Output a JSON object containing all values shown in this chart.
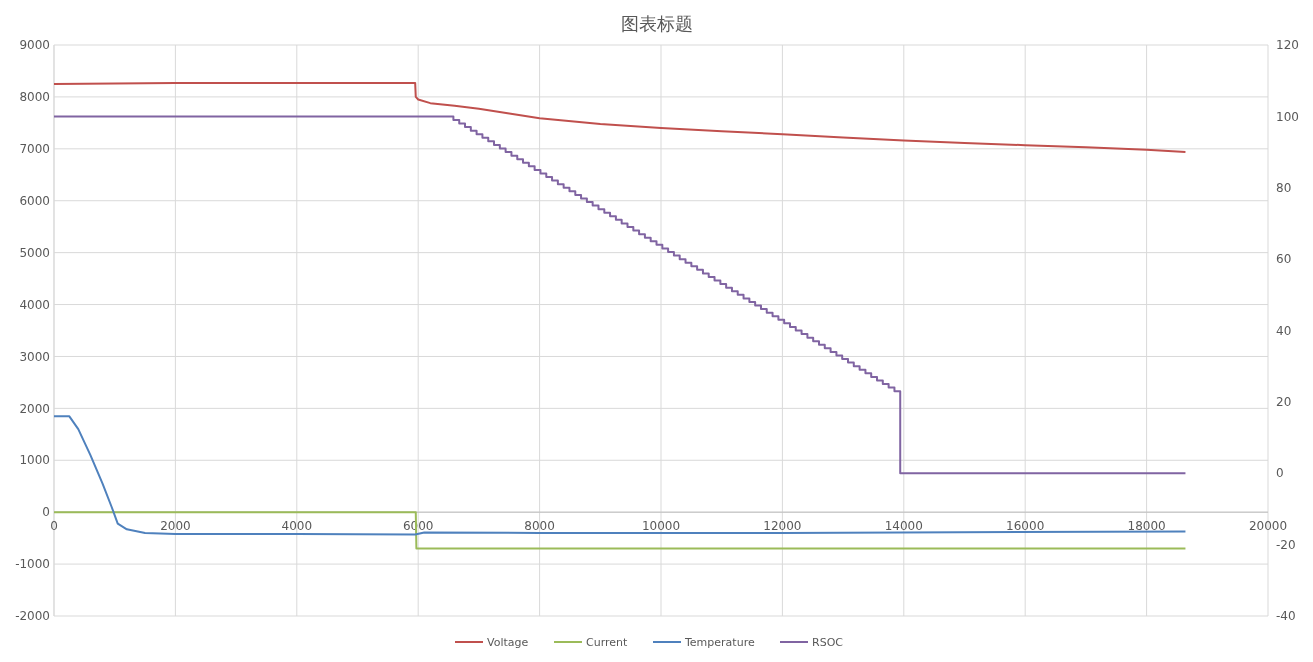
{
  "chart_data": {
    "type": "line",
    "title": "图表标题",
    "xlim": [
      0,
      20000
    ],
    "xticks": [
      0,
      2000,
      4000,
      6000,
      8000,
      10000,
      12000,
      14000,
      16000,
      18000,
      20000
    ],
    "ylim": [
      -2000,
      9000
    ],
    "yticks": [
      -2000,
      -1000,
      0,
      1000,
      2000,
      3000,
      4000,
      5000,
      6000,
      7000,
      8000,
      9000
    ],
    "y2lim": [
      -40,
      120
    ],
    "y2ticks": [
      -40,
      -20,
      0,
      20,
      40,
      60,
      80,
      100,
      120
    ],
    "grid": true,
    "legend": "bottom",
    "series": [
      {
        "name": "Voltage",
        "color": "#c0504d",
        "x": [
          0,
          1000,
          2000,
          5950,
          5960,
          6000,
          6200,
          6600,
          7000,
          7500,
          8000,
          9000,
          10000,
          11000,
          12000,
          13000,
          14000,
          15000,
          16000,
          17000,
          18000,
          18640
        ],
        "values": [
          8250,
          8260,
          8270,
          8270,
          8000,
          7950,
          7880,
          7830,
          7770,
          7680,
          7590,
          7480,
          7400,
          7340,
          7280,
          7220,
          7160,
          7110,
          7070,
          7030,
          6980,
          6940
        ]
      },
      {
        "name": "Current",
        "color": "#9bbb59",
        "x": [
          0,
          5960,
          5970,
          18640
        ],
        "values": [
          0,
          0,
          -700,
          -700
        ]
      },
      {
        "name": "Temperature",
        "color": "#4f81bd",
        "x": [
          0,
          250,
          400,
          600,
          800,
          950,
          1050,
          1200,
          1500,
          2000,
          4000,
          5950,
          6100,
          8000,
          12000,
          18640
        ],
        "values": [
          1850,
          1850,
          1600,
          1100,
          550,
          100,
          -220,
          -330,
          -400,
          -420,
          -420,
          -430,
          -390,
          -400,
          -400,
          -370
        ]
      },
      {
        "name": "RSOC",
        "color": "#8064a2",
        "type": "step",
        "axis": "y2",
        "x": [
          0,
          6580,
          6676,
          6771,
          6867,
          6962,
          7058,
          7154,
          7249,
          7345,
          7440,
          7536,
          7632,
          7727,
          7823,
          7918,
          8014,
          8110,
          8205,
          8301,
          8396,
          8492,
          8588,
          8683,
          8779,
          8874,
          8970,
          9066,
          9161,
          9257,
          9352,
          9448,
          9544,
          9639,
          9735,
          9830,
          9926,
          10022,
          10117,
          10213,
          10308,
          10404,
          10500,
          10595,
          10691,
          10786,
          10882,
          10978,
          11073,
          11169,
          11264,
          11360,
          11456,
          11551,
          11647,
          11742,
          11838,
          11934,
          12029,
          12125,
          12220,
          12316,
          12412,
          12507,
          12603,
          12698,
          12794,
          12890,
          12985,
          13081,
          13176,
          13272,
          13368,
          13463,
          13559,
          13654,
          13750,
          13846,
          13941,
          18640
        ],
        "values": [
          100,
          99,
          98,
          97,
          96,
          95,
          94,
          93,
          92,
          91,
          90,
          89,
          88,
          87,
          86,
          85,
          84,
          83,
          82,
          81,
          80,
          79,
          78,
          77,
          76,
          75,
          74,
          73,
          72,
          71,
          70,
          69,
          68,
          67,
          66,
          65,
          64,
          63,
          62,
          61,
          60,
          59,
          58,
          57,
          56,
          55,
          54,
          53,
          52,
          51,
          50,
          49,
          48,
          47,
          46,
          45,
          44,
          43,
          42,
          41,
          40,
          39,
          38,
          37,
          36,
          35,
          34,
          33,
          32,
          31,
          30,
          29,
          28,
          27,
          26,
          25,
          24,
          23,
          0,
          0
        ]
      }
    ]
  }
}
